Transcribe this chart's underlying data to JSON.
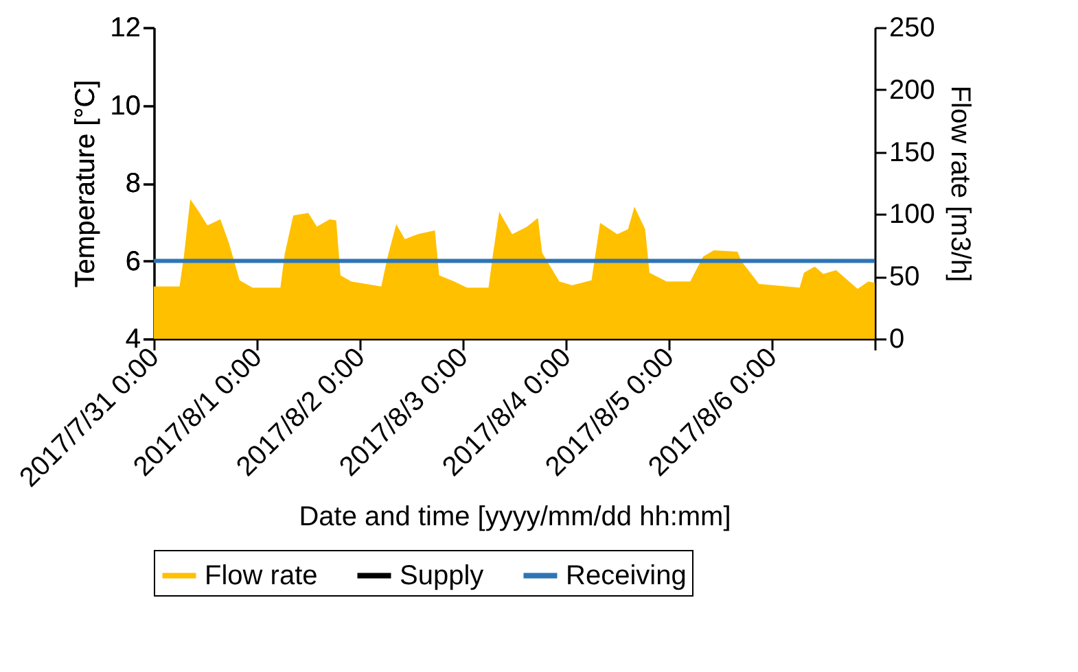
{
  "chart_data": {
    "type": "line",
    "xlabel": "Date and time [yyyy/mm/dd hh:mm]",
    "ylabel": "Temperature [°C]",
    "y2label": "Flow rate [m3/h]",
    "xlim": [
      "2017-07-31T00:00",
      "2017-08-07T00:00"
    ],
    "xticks": [
      {
        "value": "2017-07-31T00:00",
        "label": "2017/7/31 0:00"
      },
      {
        "value": "2017-08-01T00:00",
        "label": "2017/8/1 0:00"
      },
      {
        "value": "2017-08-02T00:00",
        "label": "2017/8/2 0:00"
      },
      {
        "value": "2017-08-03T00:00",
        "label": "2017/8/3 0:00"
      },
      {
        "value": "2017-08-04T00:00",
        "label": "2017/8/4 0:00"
      },
      {
        "value": "2017-08-05T00:00",
        "label": "2017/8/5 0:00"
      },
      {
        "value": "2017-08-06T00:00",
        "label": "2017/8/6 0:00"
      },
      {
        "value": "2017-08-07T00:00",
        "label": null
      }
    ],
    "ylim": [
      4,
      12
    ],
    "yticks": [
      4,
      6,
      8,
      10,
      12
    ],
    "y2lim": [
      0,
      250
    ],
    "y2ticks": [
      0,
      50,
      100,
      150,
      200,
      250
    ],
    "grid": false,
    "legend": "bottom",
    "series": [
      {
        "name": "Flow rate",
        "type": "area",
        "axis": "y2",
        "color": "#ffc000",
        "x": [
          "2017-07-31T00:00",
          "2017-07-31T06:00",
          "2017-07-31T07:00",
          "2017-07-31T08:30",
          "2017-07-31T10:30",
          "2017-07-31T12:30",
          "2017-07-31T15:30",
          "2017-07-31T17:30",
          "2017-07-31T20:00",
          "2017-07-31T23:00",
          "2017-08-01T05:30",
          "2017-08-01T06:30",
          "2017-08-01T08:30",
          "2017-08-01T12:00",
          "2017-08-01T14:00",
          "2017-08-01T17:00",
          "2017-08-01T18:30",
          "2017-08-01T19:30",
          "2017-08-01T22:00",
          "2017-08-02T05:00",
          "2017-08-02T06:30",
          "2017-08-02T08:30",
          "2017-08-02T10:30",
          "2017-08-02T13:30",
          "2017-08-02T17:30",
          "2017-08-02T18:30",
          "2017-08-02T22:00",
          "2017-08-03T01:00",
          "2017-08-03T06:00",
          "2017-08-03T07:00",
          "2017-08-03T08:30",
          "2017-08-03T11:30",
          "2017-08-03T15:00",
          "2017-08-03T17:30",
          "2017-08-03T18:30",
          "2017-08-03T22:30",
          "2017-08-04T01:30",
          "2017-08-04T06:00",
          "2017-08-04T08:00",
          "2017-08-04T12:00",
          "2017-08-04T14:30",
          "2017-08-04T16:00",
          "2017-08-04T18:30",
          "2017-08-04T19:30",
          "2017-08-04T23:30",
          "2017-08-05T05:00",
          "2017-08-05T08:00",
          "2017-08-05T10:30",
          "2017-08-05T16:00",
          "2017-08-05T17:00",
          "2017-08-05T21:00",
          "2017-08-06T06:30",
          "2017-08-06T07:30",
          "2017-08-06T10:00",
          "2017-08-06T12:00",
          "2017-08-06T15:00",
          "2017-08-06T20:00",
          "2017-08-06T22:30",
          "2017-08-07T00:00"
        ],
        "values": [
          42,
          42,
          66,
          112,
          102,
          91,
          96,
          77,
          47,
          41,
          41,
          68,
          99,
          101,
          90,
          96,
          95,
          51,
          46,
          42,
          66,
          92,
          80,
          84,
          87,
          51,
          46,
          41,
          41,
          67,
          102,
          84,
          90,
          97,
          69,
          46,
          43,
          47,
          93,
          84,
          88,
          106,
          88,
          53,
          46,
          46,
          66,
          71,
          70,
          62,
          44,
          41,
          53,
          58,
          52,
          55,
          40,
          46,
          45
        ]
      },
      {
        "name": "Supply",
        "color": "#000000"
      },
      {
        "name": "Receiving",
        "color": "#2e75b6",
        "x": [
          "2017-07-31T00:00",
          "2017-08-07T00:00"
        ],
        "values": [
          6,
          6
        ]
      }
    ]
  }
}
